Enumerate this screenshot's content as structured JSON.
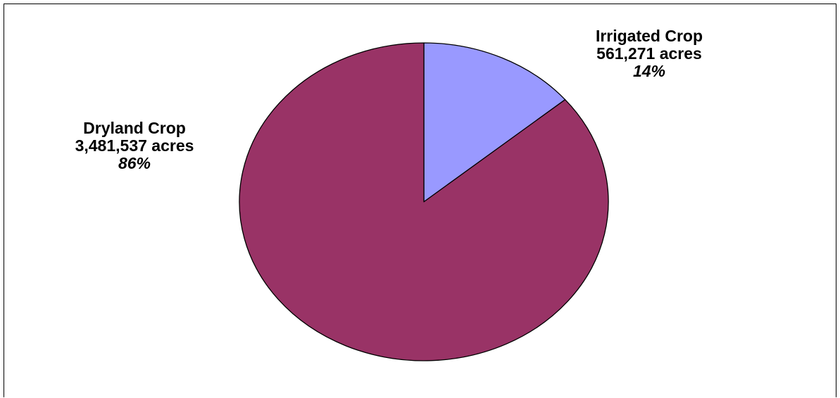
{
  "chart_data": {
    "type": "pie",
    "title": "",
    "units": "acres",
    "slices": [
      {
        "name": "Irrigated Crop",
        "value": 561271,
        "value_label": "561,271 acres",
        "percent_label": "14%",
        "color": "#9999ff"
      },
      {
        "name": "Dryland Crop",
        "value": 3481537,
        "value_label": "3,481,537 acres",
        "percent_label": "86%",
        "color": "#993366"
      }
    ],
    "start": "12 o'clock",
    "direction": "clockwise",
    "legend": "none",
    "edge_color": "#000000"
  }
}
